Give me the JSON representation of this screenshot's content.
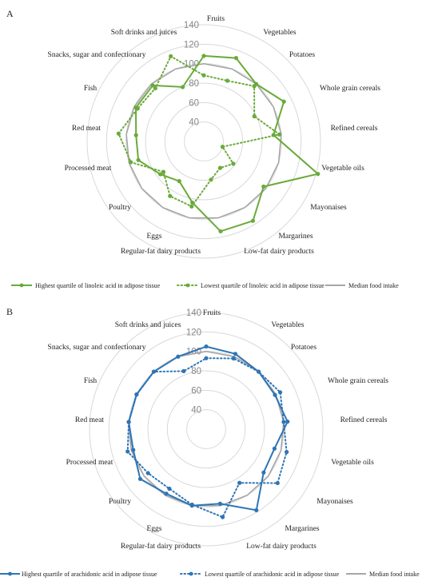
{
  "chart_data": [
    {
      "type": "radar",
      "panel_label": "A",
      "categories": [
        "Fruits",
        "Vegetables",
        "Potatoes",
        "Whole grain cereals",
        "Refined cereals",
        "Vegetable oils",
        "Mayonaises",
        "Margarines",
        "Low-fat dairy products",
        "Regular-fat dairy products",
        "Eggs",
        "Poultry",
        "Processed meat",
        "Red meat",
        "Fish",
        "Snacks, sugar and confectionary",
        "Soft drinks and juices"
      ],
      "ticks": [
        40,
        60,
        80,
        100,
        120,
        140
      ],
      "rlim": [
        20,
        140
      ],
      "grid": true,
      "series": [
        {
          "name": "Highest quartile of linoleic acid in adipose tissue",
          "style": "solid",
          "color": "#6aaa3a",
          "values": [
            108,
            112,
            100,
            112,
            92,
            142,
            97,
            116,
            114,
            84,
            68,
            76,
            90,
            90,
            98,
            98,
            80
          ]
        },
        {
          "name": "Lowest quartile of linoleic acid in adipose tissue",
          "style": "dotted",
          "color": "#6aaa3a",
          "values": [
            88,
            87,
            97,
            78,
            98,
            40,
            58,
            52,
            60,
            88,
            86,
            72,
            98,
            108,
            96,
            94,
            114
          ]
        },
        {
          "name": "Median food intake",
          "style": "solid",
          "color": "#a6a6a6",
          "values": [
            100,
            100,
            100,
            100,
            100,
            100,
            100,
            100,
            100,
            100,
            100,
            100,
            100,
            100,
            100,
            100,
            100
          ]
        }
      ]
    },
    {
      "type": "radar",
      "panel_label": "B",
      "categories": [
        "Fruits",
        "Vegetables",
        "Potatoes",
        "Whole grain cereals",
        "Refined cereals",
        "Vegetable oils",
        "Mayonaises",
        "Margarines",
        "Low-fat dairy products",
        "Regular-fat dairy products",
        "Eggs",
        "Poultry",
        "Processed meat",
        "Red meat",
        "Fish",
        "Snacks, sugar and confectionary",
        "Soft drinks and juices"
      ],
      "ticks": [
        40,
        60,
        80,
        100,
        120,
        140
      ],
      "rlim": [
        20,
        140
      ],
      "grid": true,
      "series": [
        {
          "name": "Highest quartile of arachidonic acid in adipose tissue",
          "style": "solid",
          "color": "#2e75b6",
          "values": [
            105,
            103,
            100,
            99,
            104,
            93,
            94,
            118,
            98,
            100,
            98,
            105,
            98,
            100,
            100,
            100,
            100
          ]
        },
        {
          "name": "Lowest quartile of arachidonic acid in adipose tissue",
          "style": "dotted",
          "color": "#2e75b6",
          "values": [
            93,
            98,
            100,
            105,
            100,
            106,
            112,
            85,
            112,
            99,
            92,
            95,
            104,
            100,
            100,
            100,
            84
          ]
        },
        {
          "name": "Median food intake",
          "style": "solid",
          "color": "#a6a6a6",
          "values": [
            100,
            100,
            100,
            100,
            100,
            100,
            100,
            100,
            100,
            100,
            100,
            100,
            100,
            100,
            100,
            100,
            100
          ]
        }
      ]
    }
  ]
}
